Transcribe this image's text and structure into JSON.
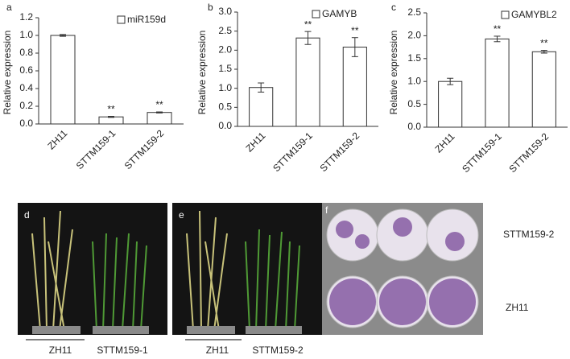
{
  "chart_data": [
    {
      "type": "bar",
      "panel_label": "a",
      "y_label": "Relative expression",
      "categories": [
        "ZH11",
        "STTM159-1",
        "STTM159-2"
      ],
      "series": [
        {
          "name": "miR159d",
          "color": "#ffffff",
          "values": [
            1.0,
            0.08,
            0.13
          ],
          "errors": [
            0.01,
            0.006,
            0.006
          ],
          "significance": [
            null,
            "**",
            "**"
          ]
        }
      ],
      "ylim": [
        0,
        1.2
      ],
      "yticks": [
        {
          "value": 0,
          "label": "0.0"
        },
        0.2,
        0.4,
        0.6,
        0.8,
        {
          "value": 1,
          "label": "1.0"
        },
        1.2
      ]
    },
    {
      "type": "bar",
      "panel_label": "b",
      "y_label": "Relative expression",
      "categories": [
        "ZH11",
        "STTM159-1",
        "STTM159-2"
      ],
      "series": [
        {
          "name": "GAMYB",
          "color": "#ffffff",
          "values": [
            1.02,
            2.32,
            2.08
          ],
          "errors": [
            0.12,
            0.17,
            0.25
          ],
          "significance": [
            null,
            "**",
            "**"
          ]
        }
      ],
      "ylim": [
        0,
        3
      ],
      "yticks": [
        {
          "value": 0,
          "label": "0.0"
        },
        0.5,
        {
          "value": 1,
          "label": "1.0"
        },
        1.5,
        {
          "value": 2,
          "label": "2.0"
        },
        2.5,
        {
          "value": 3,
          "label": "3.0"
        }
      ]
    },
    {
      "type": "bar",
      "panel_label": "c",
      "y_label": "Relative expression",
      "categories": [
        "ZH11",
        "STTM159-1",
        "STTM159-2"
      ],
      "series": [
        {
          "name": "GAMYBL2",
          "color": "#ffffff",
          "values": [
            1.0,
            1.93,
            1.65
          ],
          "errors": [
            0.07,
            0.06,
            0.03
          ],
          "significance": [
            null,
            "**",
            "**"
          ]
        }
      ],
      "ylim": [
        0,
        2.5
      ],
      "yticks": [
        {
          "value": 0,
          "label": "0.0"
        },
        0.5,
        {
          "value": 1,
          "label": "1.0"
        },
        1.5,
        {
          "value": 2,
          "label": "2.0"
        },
        2.5
      ]
    }
  ],
  "photo_panels": [
    {
      "panel_label": "d",
      "labels": [
        "ZH11",
        "STTM159-1"
      ]
    },
    {
      "panel_label": "e",
      "labels": [
        "ZH11",
        "STTM159-2"
      ]
    },
    {
      "panel_label": "f",
      "labels": [
        "STTM159-2",
        "ZH11"
      ]
    }
  ]
}
